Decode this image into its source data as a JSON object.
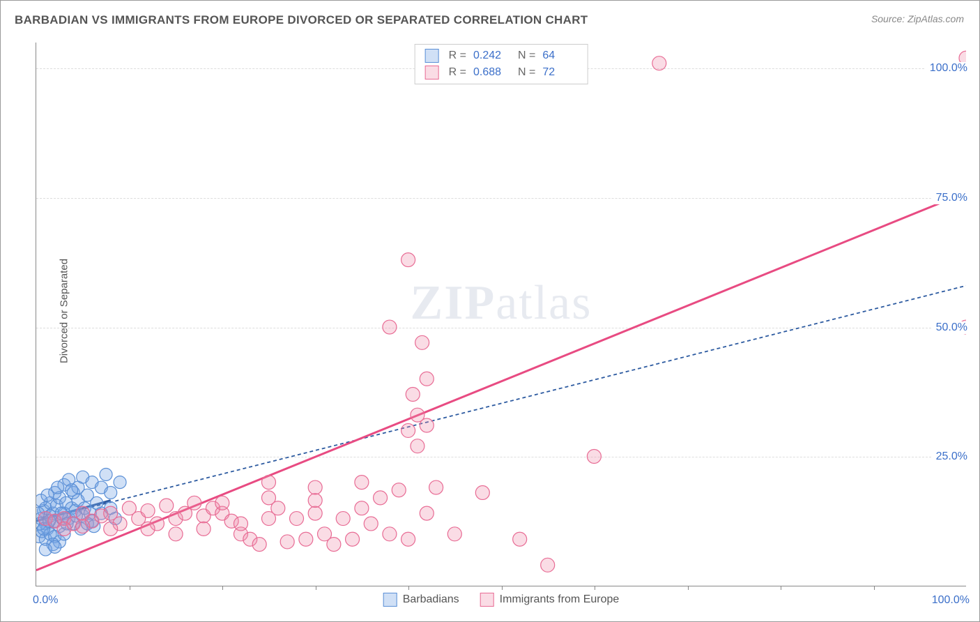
{
  "title": "BARBADIAN VS IMMIGRANTS FROM EUROPE DIVORCED OR SEPARATED CORRELATION CHART",
  "source": "Source: ZipAtlas.com",
  "watermark": "ZIPatlas",
  "yaxis_title": "Divorced or Separated",
  "chart": {
    "type": "scatter",
    "xlim": [
      0,
      100
    ],
    "ylim": [
      0,
      105
    ],
    "xaxis_labels": {
      "left": "0.0%",
      "right": "100.0%"
    },
    "yticks": [
      {
        "value": 25,
        "label": "25.0%"
      },
      {
        "value": 50,
        "label": "50.0%"
      },
      {
        "value": 75,
        "label": "75.0%"
      },
      {
        "value": 100,
        "label": "100.0%"
      }
    ],
    "xtick_positions": [
      10,
      20,
      30,
      40,
      50,
      60,
      70,
      80,
      90
    ],
    "grid_color": "#dddddd",
    "background_color": "#ffffff",
    "series": [
      {
        "name": "Barbadians",
        "marker_fill": "rgba(120,165,230,0.35)",
        "marker_stroke": "#5a8fd6",
        "marker_radius": 9,
        "line_color": "#2c5aa0",
        "line_dash": "5,4",
        "line_width": 1.8,
        "line_from": [
          0,
          12.5
        ],
        "line_to": [
          100,
          58
        ],
        "short_solid_to": [
          8,
          16.5
        ],
        "stats": {
          "R": "0.242",
          "N": "64"
        },
        "points": [
          [
            0.5,
            13
          ],
          [
            0.8,
            14.5
          ],
          [
            1,
            12
          ],
          [
            1,
            15
          ],
          [
            1.2,
            11
          ],
          [
            1.5,
            16
          ],
          [
            1.5,
            13.5
          ],
          [
            1.8,
            14
          ],
          [
            2,
            18
          ],
          [
            2,
            12.5
          ],
          [
            2.2,
            15.5
          ],
          [
            2.5,
            17
          ],
          [
            2.5,
            11.5
          ],
          [
            2.8,
            13
          ],
          [
            3,
            19.5
          ],
          [
            3,
            14
          ],
          [
            3.2,
            16
          ],
          [
            3.5,
            20.5
          ],
          [
            3.5,
            13
          ],
          [
            3.8,
            15
          ],
          [
            4,
            18
          ],
          [
            4,
            12
          ],
          [
            4.2,
            14.5
          ],
          [
            4.5,
            16.5
          ],
          [
            4.5,
            19
          ],
          [
            5,
            21
          ],
          [
            5,
            13.5
          ],
          [
            5.2,
            15
          ],
          [
            5.5,
            17.5
          ],
          [
            5.8,
            14
          ],
          [
            6,
            20
          ],
          [
            6,
            12.5
          ],
          [
            6.5,
            16
          ],
          [
            7,
            19
          ],
          [
            7,
            14
          ],
          [
            7.5,
            21.5
          ],
          [
            8,
            15
          ],
          [
            8,
            18
          ],
          [
            8.5,
            13
          ],
          [
            9,
            20
          ],
          [
            0.3,
            9.5
          ],
          [
            0.6,
            10.5
          ],
          [
            1,
            9
          ],
          [
            1.5,
            10
          ],
          [
            2,
            9.5
          ],
          [
            2.5,
            8.5
          ],
          [
            3,
            10
          ],
          [
            1.8,
            8
          ],
          [
            0.5,
            16.5
          ],
          [
            1.2,
            17.5
          ],
          [
            2.3,
            19
          ],
          [
            3.8,
            18.5
          ],
          [
            1,
            7
          ],
          [
            2,
            7.5
          ],
          [
            4.8,
            11
          ],
          [
            5.5,
            12
          ],
          [
            6.2,
            11.5
          ],
          [
            0.2,
            14
          ],
          [
            0.4,
            12
          ],
          [
            0.8,
            11
          ],
          [
            1.4,
            12.5
          ],
          [
            2.7,
            14
          ],
          [
            3.3,
            12
          ],
          [
            4.3,
            13.5
          ]
        ]
      },
      {
        "name": "Immigrants from Europe",
        "marker_fill": "rgba(240,140,170,0.30)",
        "marker_stroke": "#e86b94",
        "marker_radius": 10,
        "line_color": "#e84b82",
        "line_dash": "none",
        "line_width": 3,
        "line_from": [
          0,
          3
        ],
        "line_to": [
          100,
          76
        ],
        "stats": {
          "R": "0.688",
          "N": "72"
        },
        "points": [
          [
            1,
            13
          ],
          [
            2,
            12.5
          ],
          [
            3,
            13
          ],
          [
            4,
            12
          ],
          [
            5,
            14
          ],
          [
            6,
            12.5
          ],
          [
            7,
            13.5
          ],
          [
            8,
            14
          ],
          [
            9,
            12
          ],
          [
            10,
            15
          ],
          [
            11,
            13
          ],
          [
            12,
            14.5
          ],
          [
            13,
            12
          ],
          [
            14,
            15.5
          ],
          [
            15,
            13
          ],
          [
            16,
            14
          ],
          [
            17,
            16
          ],
          [
            18,
            13.5
          ],
          [
            19,
            15
          ],
          [
            20,
            14
          ],
          [
            21,
            12.5
          ],
          [
            22,
            10
          ],
          [
            23,
            9
          ],
          [
            24,
            8
          ],
          [
            25,
            13
          ],
          [
            26,
            15
          ],
          [
            27,
            8.5
          ],
          [
            28,
            13
          ],
          [
            29,
            9
          ],
          [
            30,
            14
          ],
          [
            31,
            10
          ],
          [
            32,
            8
          ],
          [
            33,
            13
          ],
          [
            34,
            9
          ],
          [
            35,
            15
          ],
          [
            36,
            12
          ],
          [
            37,
            17
          ],
          [
            38,
            10
          ],
          [
            39,
            18.5
          ],
          [
            40,
            9
          ],
          [
            40.5,
            37
          ],
          [
            40,
            30
          ],
          [
            41,
            27
          ],
          [
            41.5,
            47
          ],
          [
            42,
            40
          ],
          [
            40,
            63
          ],
          [
            42,
            14
          ],
          [
            20,
            16
          ],
          [
            25,
            17
          ],
          [
            30,
            16.5
          ],
          [
            38,
            50
          ],
          [
            35,
            20
          ],
          [
            30,
            19
          ],
          [
            25,
            20
          ],
          [
            41,
            33
          ],
          [
            42,
            31
          ],
          [
            43,
            19
          ],
          [
            45,
            10
          ],
          [
            48,
            18
          ],
          [
            52,
            9
          ],
          [
            55,
            4
          ],
          [
            60,
            25
          ],
          [
            67,
            101
          ],
          [
            100,
            102
          ],
          [
            100,
            50
          ],
          [
            18,
            11
          ],
          [
            22,
            12
          ],
          [
            15,
            10
          ],
          [
            12,
            11
          ],
          [
            8,
            11
          ],
          [
            5,
            11.5
          ],
          [
            3,
            11
          ]
        ]
      }
    ]
  },
  "stats_box": {
    "rows": [
      {
        "swatch_fill": "rgba(120,165,230,0.35)",
        "swatch_stroke": "#5a8fd6",
        "r_label": "R =",
        "r_val": "0.242",
        "n_label": "N =",
        "n_val": "64"
      },
      {
        "swatch_fill": "rgba(240,140,170,0.30)",
        "swatch_stroke": "#e86b94",
        "r_label": "R =",
        "r_val": "0.688",
        "n_label": "N =",
        "n_val": "72"
      }
    ]
  },
  "legend": [
    {
      "swatch_fill": "rgba(120,165,230,0.35)",
      "swatch_stroke": "#5a8fd6",
      "label": "Barbadians"
    },
    {
      "swatch_fill": "rgba(240,140,170,0.30)",
      "swatch_stroke": "#e86b94",
      "label": "Immigrants from Europe"
    }
  ]
}
